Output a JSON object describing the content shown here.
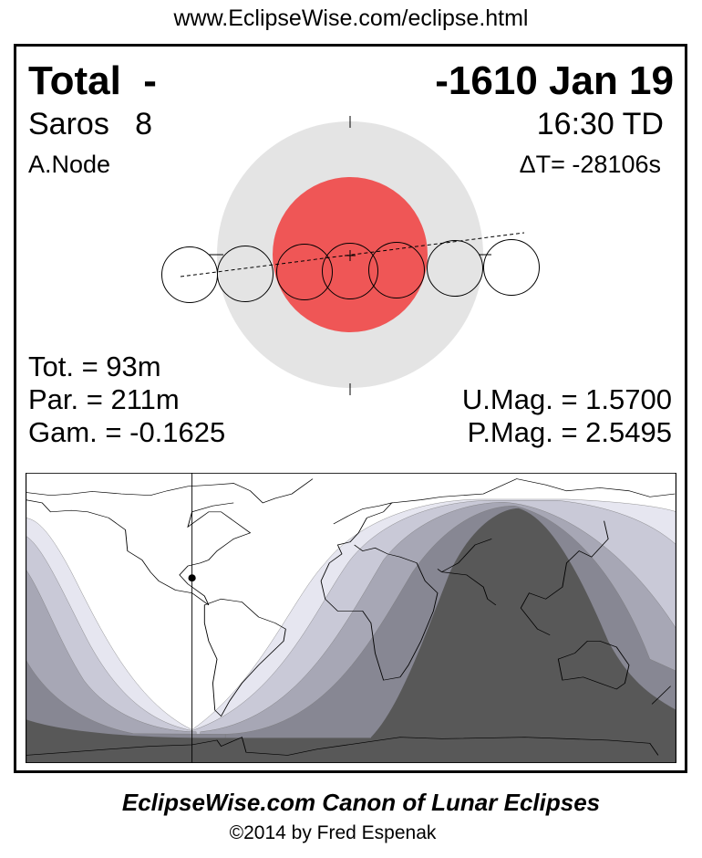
{
  "header": {
    "url": "www.EclipseWise.com/eclipse.html"
  },
  "eclipse": {
    "type": "Total",
    "type_suffix": "-",
    "date": "-1610 Jan 19",
    "saros_label": "Saros",
    "saros_number": "8",
    "time": "16:30 TD",
    "node": "A.Node",
    "delta_t": "ΔT= -28106s"
  },
  "stats": {
    "totality": "Tot. =  93m",
    "partial": "Par. = 211m",
    "gamma": "Gam. = -0.1625",
    "umbral_magnitude": "U.Mag. = 1.5700",
    "penumbral_magnitude": "P.Mag. = 2.5495"
  },
  "colors": {
    "penumbra": "#e4e4e4",
    "umbra": "#ef5656",
    "map_dark": "#585858",
    "map_band1": "#e6e6f0",
    "map_band2": "#c9c9d7",
    "map_band3": "#a7a7b5",
    "map_band4": "#878793"
  },
  "footer": {
    "title": "EclipseWise.com Canon of Lunar Eclipses",
    "copyright": "©2014 by Fred Espenak"
  }
}
